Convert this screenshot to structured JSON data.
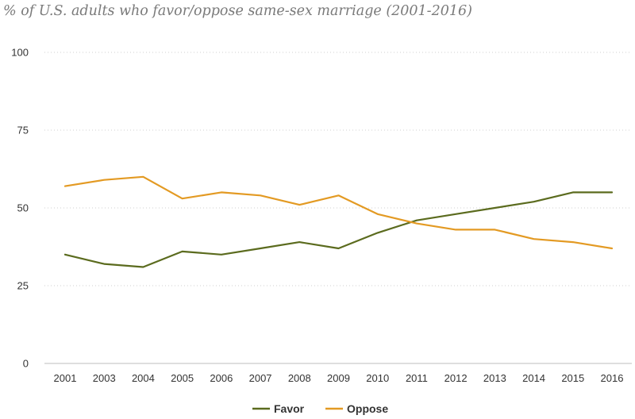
{
  "chart_data": {
    "type": "line",
    "title": "% of U.S. adults who favor/oppose same-sex marriage (2001-2016)",
    "xlabel": "",
    "ylabel": "",
    "x": [
      "2001",
      "2003",
      "2004",
      "2005",
      "2006",
      "2007",
      "2008",
      "2009",
      "2010",
      "2011",
      "2012",
      "2013",
      "2014",
      "2015",
      "2016"
    ],
    "ylim": [
      0,
      100
    ],
    "yticks": [
      0,
      25,
      50,
      75,
      100
    ],
    "grid": "horizontal-dotted",
    "legend": "bottom-center",
    "series": [
      {
        "name": "Favor",
        "color": "#5b6b1e",
        "values": [
          35,
          32,
          31,
          36,
          35,
          37,
          39,
          37,
          42,
          46,
          48,
          50,
          52,
          55,
          55
        ]
      },
      {
        "name": "Oppose",
        "color": "#e39a23",
        "values": [
          57,
          59,
          60,
          53,
          55,
          54,
          51,
          54,
          48,
          45,
          43,
          43,
          40,
          39,
          37
        ]
      }
    ]
  }
}
